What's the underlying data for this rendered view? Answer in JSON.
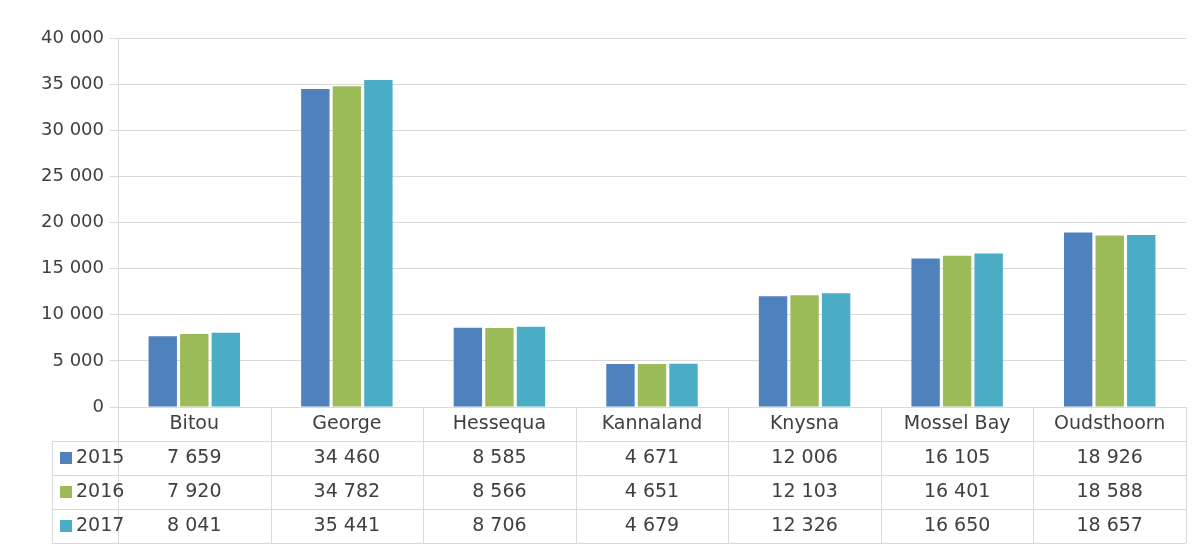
{
  "chart_data": {
    "type": "bar",
    "categories": [
      "Bitou",
      "George",
      "Hessequa",
      "Kannaland",
      "Knysna",
      "Mossel Bay",
      "Oudsthoorn"
    ],
    "series": [
      {
        "name": "2015",
        "color": "#4f81bd",
        "values": [
          7659,
          34460,
          8585,
          4671,
          12006,
          16105,
          18926
        ]
      },
      {
        "name": "2016",
        "color": "#9bbb59",
        "values": [
          7920,
          34782,
          8566,
          4651,
          12103,
          16401,
          18588
        ]
      },
      {
        "name": "2017",
        "color": "#4bacc6",
        "values": [
          8041,
          35441,
          8706,
          4679,
          12326,
          16650,
          18657
        ]
      }
    ],
    "ylim": [
      0,
      40000
    ],
    "yticks": [
      0,
      {
        "value": 5000,
        "label": "5 000"
      },
      {
        "value": 10000,
        "label": "10 000"
      },
      {
        "value": 15000,
        "label": "15 000"
      },
      {
        "value": 20000,
        "label": "20 000"
      },
      {
        "value": 25000,
        "label": "25 000"
      },
      {
        "value": 30000,
        "label": "30 000"
      },
      {
        "value": 35000,
        "label": "35 000"
      },
      {
        "value": 40000,
        "label": "40 000"
      }
    ],
    "grid": "y",
    "legend": "bottom",
    "data_labels": true
  }
}
